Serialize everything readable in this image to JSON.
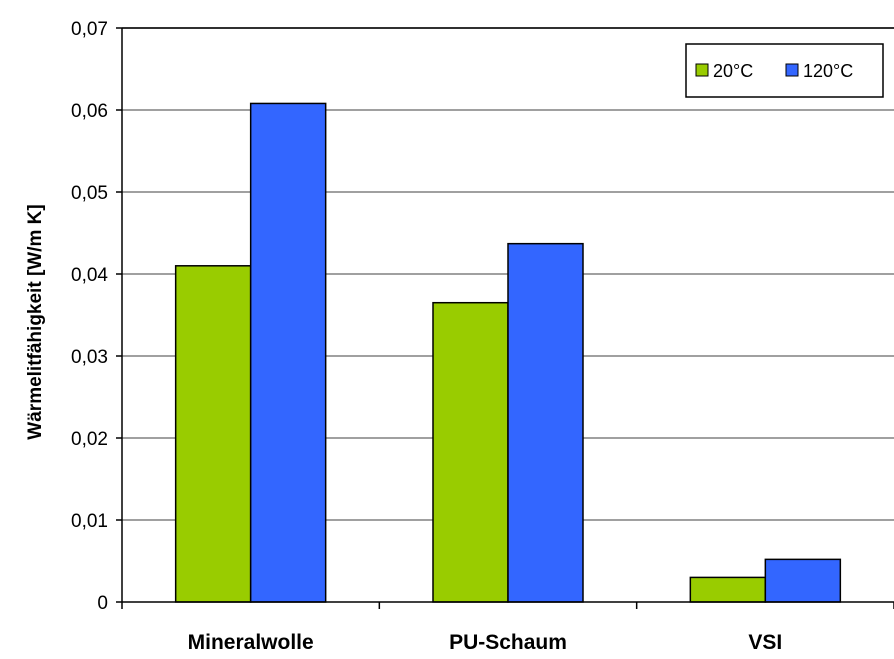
{
  "chart_data": {
    "type": "bar",
    "categories": [
      "Mineralwolle",
      "PU-Schaum",
      "VSI"
    ],
    "series": [
      {
        "name": "20°C",
        "color": "#99cc00",
        "values": [
          0.041,
          0.0365,
          0.003
        ]
      },
      {
        "name": "120°C",
        "color": "#3366ff",
        "values": [
          0.0608,
          0.0437,
          0.0052
        ]
      }
    ],
    "ylabel": "Wärmelitfähigkeit [W/m K]",
    "xlabel": "",
    "ylim": [
      0,
      0.07
    ],
    "yticks": [
      0,
      0.01,
      0.02,
      0.03,
      0.04,
      0.05,
      0.06,
      0.07
    ],
    "ytick_labels": [
      "0",
      "0,01",
      "0,02",
      "0,03",
      "0,04",
      "0,05",
      "0,06",
      "0,07"
    ],
    "grid": true,
    "legend_position": "top-right"
  }
}
